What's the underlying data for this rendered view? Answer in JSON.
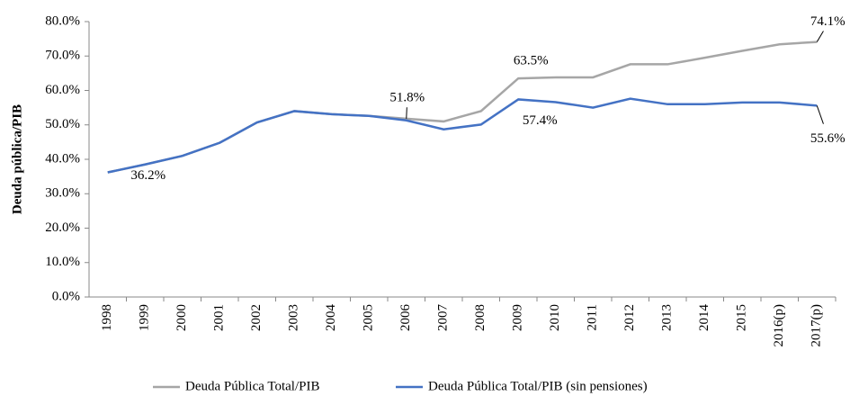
{
  "chart_data": {
    "type": "line",
    "y_label": "Deuda pública/PIB",
    "categories": [
      "1998",
      "1999",
      "2000",
      "2001",
      "2002",
      "2003",
      "2004",
      "2005",
      "2006",
      "2007",
      "2008",
      "2009",
      "2010",
      "2011",
      "2012",
      "2013",
      "2014",
      "2015",
      "2016(p)",
      "2017(p)"
    ],
    "series": [
      {
        "name": "Deuda Pública Total/PIB",
        "color": "#a6a6a6",
        "values": [
          36.2,
          38.5,
          41,
          44.8,
          50.7,
          54,
          53.1,
          52.6,
          51.8,
          51,
          54,
          63.5,
          63.8,
          63.8,
          67.6,
          67.6,
          69.5,
          71.5,
          73.4,
          74.1
        ],
        "value_labels": [
          null,
          null,
          null,
          null,
          null,
          null,
          null,
          null,
          "51.8%",
          null,
          null,
          "63.5%",
          null,
          null,
          null,
          null,
          null,
          null,
          null,
          "74.1%"
        ]
      },
      {
        "name": "Deuda Pública Total/PIB (sin pensiones)",
        "color": "#4472c4",
        "values": [
          36.2,
          38.5,
          41,
          44.8,
          50.7,
          54,
          53.1,
          52.6,
          51.3,
          48.7,
          50.1,
          57.4,
          56.6,
          55,
          57.6,
          56,
          56,
          56.5,
          56.5,
          55.6
        ],
        "value_labels": [
          "36.2%",
          null,
          null,
          null,
          null,
          null,
          null,
          null,
          null,
          null,
          null,
          "57.4%",
          null,
          null,
          null,
          null,
          null,
          null,
          null,
          "55.6%"
        ]
      }
    ],
    "ylim": [
      0,
      80
    ],
    "yticks": [
      {
        "value": 0,
        "label": "0.0%"
      },
      {
        "value": 10,
        "label": "10.0%"
      },
      {
        "value": 20,
        "label": "20.0%"
      },
      {
        "value": 30,
        "label": "30.0%"
      },
      {
        "value": 40,
        "label": "40.0%"
      },
      {
        "value": 50,
        "label": "50.0%"
      },
      {
        "value": 60,
        "label": "60.0%"
      },
      {
        "value": 70,
        "label": "70.0%"
      },
      {
        "value": 80,
        "label": "80.0%"
      }
    ],
    "grid": false,
    "legend": "bottom"
  }
}
